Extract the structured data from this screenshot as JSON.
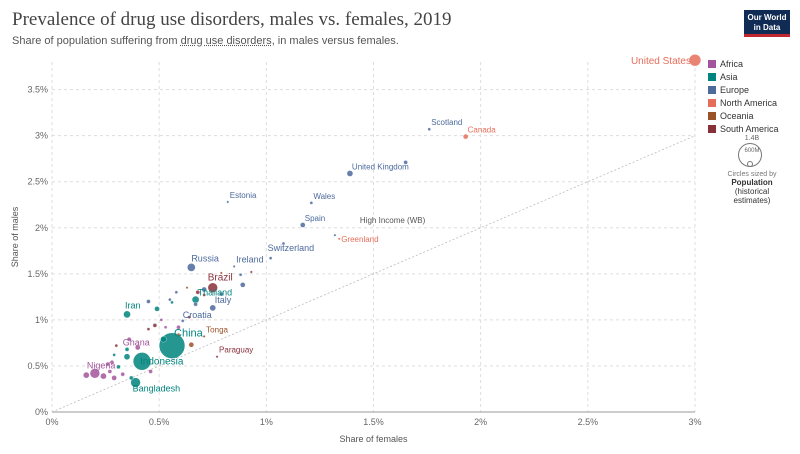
{
  "header": {
    "title": "Prevalence of drug use disorders, males vs. females, 2019",
    "subtitle_before": "Share of population suffering from ",
    "subtitle_link": "drug use disorders",
    "subtitle_after": ", in males versus females.",
    "logo_line1": "Our World",
    "logo_line2": "in Data"
  },
  "legend": {
    "items": [
      {
        "label": "Africa",
        "color": "#a2559c"
      },
      {
        "label": "Asia",
        "color": "#00847e"
      },
      {
        "label": "Europe",
        "color": "#4c6a9c"
      },
      {
        "label": "North America",
        "color": "#e56e5a"
      },
      {
        "label": "Oceania",
        "color": "#9a5129"
      },
      {
        "label": "South America",
        "color": "#883039"
      }
    ],
    "size_max": "1.4B",
    "size_mid": "600M",
    "size_note": "Circles sized by",
    "size_var_1": "Population",
    "size_var_2": "(historical",
    "size_var_3": "estimates)"
  },
  "chart_data": {
    "type": "scatter",
    "title": "Prevalence of drug use disorders, males vs. females, 2019",
    "xlabel": "Share of females",
    "ylabel": "Share of males",
    "xlim": [
      0,
      3
    ],
    "ylim": [
      0,
      3.8
    ],
    "x_ticks": [
      "0%",
      "0.5%",
      "1%",
      "1.5%",
      "2%",
      "2.5%",
      "3%"
    ],
    "y_ticks": [
      "0%",
      "0.5%",
      "1%",
      "1.5%",
      "2%",
      "2.5%",
      "3%",
      "3.5%"
    ],
    "grid": true,
    "legend_position": "right",
    "points": [
      {
        "label": "United States",
        "x": 3.0,
        "y": 3.82,
        "region": "North America",
        "r": 6
      },
      {
        "label": "Scotland",
        "x": 1.76,
        "y": 3.07,
        "region": "Europe",
        "r": 1.5
      },
      {
        "label": "Canada",
        "x": 1.93,
        "y": 2.99,
        "region": "North America",
        "r": 2.5
      },
      {
        "label": "",
        "x": 1.65,
        "y": 2.71,
        "region": "Europe",
        "r": 2
      },
      {
        "label": "United Kingdom",
        "x": 1.39,
        "y": 2.59,
        "region": "Europe",
        "r": 3
      },
      {
        "label": "Estonia",
        "x": 0.82,
        "y": 2.28,
        "region": "Europe",
        "r": 1.2
      },
      {
        "label": "Wales",
        "x": 1.21,
        "y": 2.27,
        "region": "Europe",
        "r": 1.5
      },
      {
        "label": "Spain",
        "x": 1.17,
        "y": 2.03,
        "region": "Europe",
        "r": 2.5
      },
      {
        "label": "High Income (WB)",
        "x": 1.46,
        "y": 2.01,
        "region": "",
        "r": 0
      },
      {
        "label": "Greenland",
        "x": 1.34,
        "y": 1.88,
        "region": "North America",
        "r": 1.2
      },
      {
        "label": "",
        "x": 1.32,
        "y": 1.92,
        "region": "Europe",
        "r": 1.2
      },
      {
        "label": "",
        "x": 1.08,
        "y": 1.83,
        "region": "Europe",
        "r": 1.5
      },
      {
        "label": "Switzerland",
        "x": 1.02,
        "y": 1.67,
        "region": "Europe",
        "r": 1.5
      },
      {
        "label": "Russia",
        "x": 0.65,
        "y": 1.57,
        "region": "Europe",
        "r": 4
      },
      {
        "label": "Ireland",
        "x": 0.85,
        "y": 1.58,
        "region": "Europe",
        "r": 1.2
      },
      {
        "label": "",
        "x": 0.93,
        "y": 1.52,
        "region": "South America",
        "r": 1.2
      },
      {
        "label": "",
        "x": 0.88,
        "y": 1.49,
        "region": "Europe",
        "r": 1.5
      },
      {
        "label": "Brazil",
        "x": 0.75,
        "y": 1.35,
        "region": "South America",
        "r": 5
      },
      {
        "label": "",
        "x": 0.89,
        "y": 1.38,
        "region": "Europe",
        "r": 2.5
      },
      {
        "label": "",
        "x": 0.79,
        "y": 1.51,
        "region": "Oceania",
        "r": 1.2
      },
      {
        "label": "",
        "x": 0.79,
        "y": 1.28,
        "region": "Europe",
        "r": 2
      },
      {
        "label": "",
        "x": 0.71,
        "y": 1.33,
        "region": "Europe",
        "r": 2.5
      },
      {
        "label": "Thailand",
        "x": 0.67,
        "y": 1.22,
        "region": "Asia",
        "r": 3.5
      },
      {
        "label": "",
        "x": 0.68,
        "y": 1.3,
        "region": "South America",
        "r": 2
      },
      {
        "label": "",
        "x": 0.63,
        "y": 1.35,
        "region": "Oceania",
        "r": 1.2
      },
      {
        "label": "",
        "x": 0.67,
        "y": 1.17,
        "region": "Europe",
        "r": 2
      },
      {
        "label": "",
        "x": 0.71,
        "y": 1.27,
        "region": "South America",
        "r": 1.5
      },
      {
        "label": "",
        "x": 0.58,
        "y": 1.3,
        "region": "Europe",
        "r": 1.5
      },
      {
        "label": "",
        "x": 0.56,
        "y": 1.19,
        "region": "Asia",
        "r": 1.5
      },
      {
        "label": "Italy",
        "x": 0.75,
        "y": 1.13,
        "region": "Europe",
        "r": 3
      },
      {
        "label": "",
        "x": 0.55,
        "y": 1.22,
        "region": "Europe",
        "r": 1.5
      },
      {
        "label": "",
        "x": 0.45,
        "y": 1.2,
        "region": "Europe",
        "r": 2
      },
      {
        "label": "Iran",
        "x": 0.35,
        "y": 1.06,
        "region": "Asia",
        "r": 3.5
      },
      {
        "label": "",
        "x": 0.49,
        "y": 1.12,
        "region": "Asia",
        "r": 2.5
      },
      {
        "label": "Croatia",
        "x": 0.61,
        "y": 0.99,
        "region": "Europe",
        "r": 1.5
      },
      {
        "label": "",
        "x": 0.64,
        "y": 1.03,
        "region": "South America",
        "r": 1.5
      },
      {
        "label": "",
        "x": 0.51,
        "y": 1.0,
        "region": "Africa",
        "r": 1.5
      },
      {
        "label": "",
        "x": 0.53,
        "y": 0.92,
        "region": "Africa",
        "r": 1.5
      },
      {
        "label": "",
        "x": 0.48,
        "y": 0.94,
        "region": "South America",
        "r": 2
      },
      {
        "label": "",
        "x": 0.45,
        "y": 0.9,
        "region": "South America",
        "r": 1.5
      },
      {
        "label": "",
        "x": 0.59,
        "y": 0.92,
        "region": "Africa",
        "r": 2
      },
      {
        "label": "Tonga",
        "x": 0.71,
        "y": 0.82,
        "region": "Oceania",
        "r": 1.2
      },
      {
        "label": "China",
        "x": 0.56,
        "y": 0.72,
        "region": "Asia",
        "r": 13
      },
      {
        "label": "Ghana",
        "x": 0.4,
        "y": 0.7,
        "region": "Africa",
        "r": 2.5
      },
      {
        "label": "",
        "x": 0.59,
        "y": 0.84,
        "region": "Oceania",
        "r": 1.5
      },
      {
        "label": "",
        "x": 0.65,
        "y": 0.73,
        "region": "Oceania",
        "r": 2.5
      },
      {
        "label": "",
        "x": 0.52,
        "y": 0.79,
        "region": "Asia",
        "r": 3
      },
      {
        "label": "",
        "x": 0.36,
        "y": 0.79,
        "region": "Africa",
        "r": 2
      },
      {
        "label": "",
        "x": 0.3,
        "y": 0.72,
        "region": "South America",
        "r": 1.5
      },
      {
        "label": "",
        "x": 0.29,
        "y": 0.62,
        "region": "Asia",
        "r": 1.5
      },
      {
        "label": "",
        "x": 0.35,
        "y": 0.68,
        "region": "Asia",
        "r": 2
      },
      {
        "label": "Indonesia",
        "x": 0.42,
        "y": 0.55,
        "region": "Asia",
        "r": 9
      },
      {
        "label": "",
        "x": 0.35,
        "y": 0.6,
        "region": "Asia",
        "r": 3
      },
      {
        "label": "",
        "x": 0.26,
        "y": 0.52,
        "region": "Africa",
        "r": 2
      },
      {
        "label": "",
        "x": 0.27,
        "y": 0.44,
        "region": "Africa",
        "r": 2
      },
      {
        "label": "",
        "x": 0.31,
        "y": 0.49,
        "region": "Asia",
        "r": 2
      },
      {
        "label": "",
        "x": 0.28,
        "y": 0.54,
        "region": "Africa",
        "r": 2
      },
      {
        "label": "Paraguay",
        "x": 0.77,
        "y": 0.6,
        "region": "South America",
        "r": 1.2
      },
      {
        "label": "Nigeria",
        "x": 0.2,
        "y": 0.42,
        "region": "Africa",
        "r": 5
      },
      {
        "label": "",
        "x": 0.16,
        "y": 0.4,
        "region": "Africa",
        "r": 3
      },
      {
        "label": "",
        "x": 0.24,
        "y": 0.39,
        "region": "Africa",
        "r": 3
      },
      {
        "label": "",
        "x": 0.29,
        "y": 0.37,
        "region": "Africa",
        "r": 2.5
      },
      {
        "label": "",
        "x": 0.33,
        "y": 0.41,
        "region": "Africa",
        "r": 2
      },
      {
        "label": "Bangladesh",
        "x": 0.39,
        "y": 0.32,
        "region": "Asia",
        "r": 5
      },
      {
        "label": "",
        "x": 0.37,
        "y": 0.37,
        "region": "Asia",
        "r": 2
      },
      {
        "label": "",
        "x": 0.46,
        "y": 0.44,
        "region": "Africa",
        "r": 2
      }
    ]
  }
}
